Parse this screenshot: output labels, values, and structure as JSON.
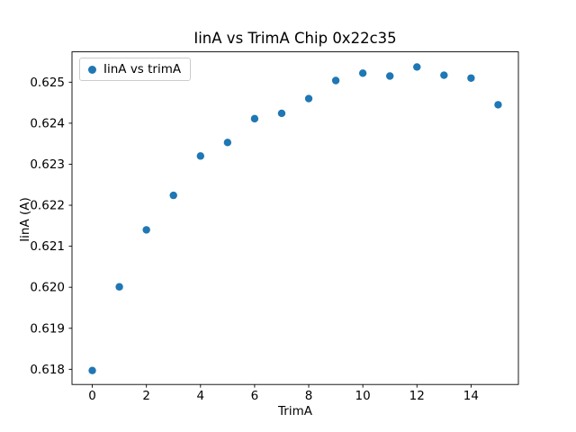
{
  "figure": {
    "background": "#ffffff"
  },
  "chart_data": {
    "type": "scatter",
    "title": "IinA vs TrimA Chip 0x22c35",
    "xlabel": "TrimA",
    "ylabel": "IinA (A)",
    "legend": {
      "label": "IinA vs trimA",
      "position": "upper left"
    },
    "marker_color": "#1f77b4",
    "x": [
      0,
      1,
      2,
      3,
      4,
      5,
      6,
      7,
      8,
      9,
      10,
      11,
      12,
      13,
      14,
      15
    ],
    "y": [
      0.61797,
      0.62001,
      0.6214,
      0.62224,
      0.6232,
      0.62353,
      0.62411,
      0.62424,
      0.6246,
      0.62504,
      0.62522,
      0.62515,
      0.62537,
      0.62517,
      0.6251,
      0.62445
    ],
    "xlim": [
      -0.75,
      15.75
    ],
    "ylim": [
      0.61763,
      0.62574
    ],
    "xticks": [
      0,
      2,
      4,
      6,
      8,
      10,
      12,
      14
    ],
    "xtick_labels": [
      "0",
      "2",
      "4",
      "6",
      "8",
      "10",
      "12",
      "14"
    ],
    "yticks": [
      0.618,
      0.619,
      0.62,
      0.621,
      0.622,
      0.623,
      0.624,
      0.625
    ],
    "ytick_labels": [
      "0.618",
      "0.619",
      "0.620",
      "0.621",
      "0.622",
      "0.623",
      "0.624",
      "0.625"
    ],
    "grid": false
  }
}
